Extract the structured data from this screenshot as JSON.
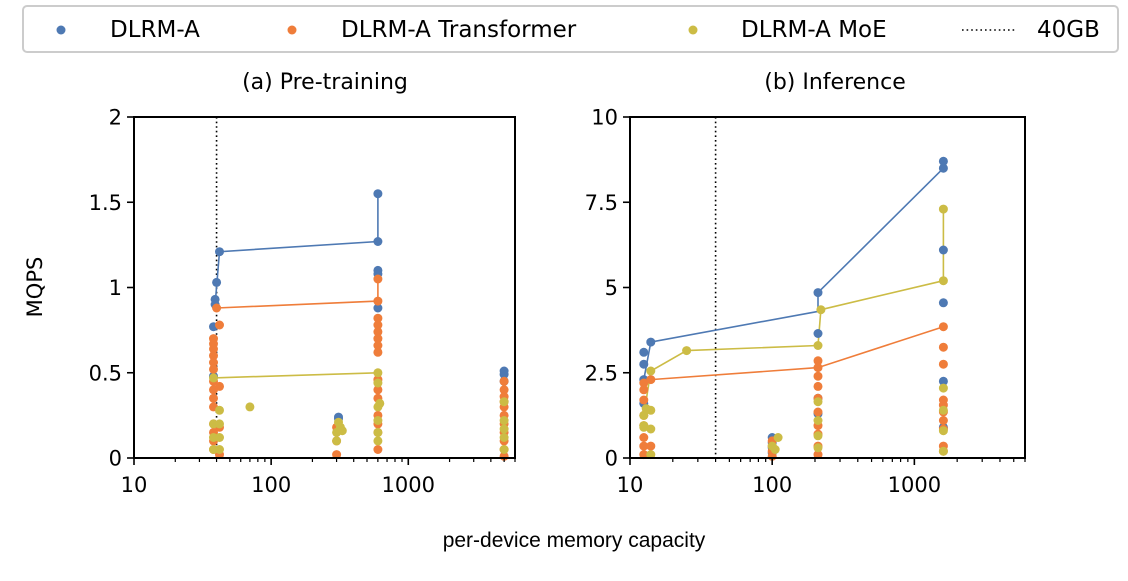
{
  "chart_data": {
    "type": "scatter",
    "xlabel": "per-device memory capacity",
    "legend": {
      "position": "top",
      "entries": [
        {
          "label": "DLRM-A",
          "color": "#4e79b3",
          "kind": "dot"
        },
        {
          "label": "DLRM-A Transformer",
          "color": "#ef7d3a",
          "kind": "dot"
        },
        {
          "label": "DLRM-A MoE",
          "color": "#ccbc45",
          "kind": "dot"
        },
        {
          "label": "40GB",
          "color": "#000000",
          "kind": "dotted-line"
        }
      ]
    },
    "panels": [
      {
        "title": "(a) Pre-training",
        "ylabel": "MQPS",
        "xscale": "log",
        "xlim": [
          10,
          6000
        ],
        "ylim": [
          0,
          2
        ],
        "xticks": [
          10,
          100,
          1000
        ],
        "xtick_labels": [
          "10",
          "100",
          "1000"
        ],
        "yticks": [
          0,
          0.5,
          1,
          1.5,
          2
        ],
        "ytick_labels": [
          "0",
          "0.5",
          "1",
          "1.5",
          "2"
        ],
        "vline": 40,
        "series": [
          {
            "name": "DLRM-A",
            "color": "#4e79b3",
            "points": [
              [
                40,
                1.03
              ],
              [
                39,
                0.93
              ],
              [
                39,
                0.9
              ],
              [
                38,
                0.77
              ],
              [
                38,
                0.48
              ],
              [
                42,
                1.21
              ],
              [
                600,
                1.55
              ],
              [
                600,
                1.27
              ],
              [
                600,
                1.1
              ],
              [
                600,
                1.08
              ],
              [
                600,
                0.88
              ],
              [
                310,
                0.24
              ],
              [
                310,
                0.23
              ],
              [
                5000,
                0.51
              ],
              [
                5000,
                0.49
              ],
              [
                5000,
                0.45
              ]
            ],
            "line": [
              [
                39,
                0.9
              ],
              [
                42,
                1.21
              ],
              [
                600,
                1.27
              ],
              [
                600,
                1.55
              ]
            ]
          },
          {
            "name": "DLRM-A Transformer",
            "color": "#ef7d3a",
            "points": [
              [
                38,
                0.7
              ],
              [
                38,
                0.67
              ],
              [
                38,
                0.64
              ],
              [
                38,
                0.6
              ],
              [
                38,
                0.56
              ],
              [
                38,
                0.52
              ],
              [
                38,
                0.45
              ],
              [
                38,
                0.4
              ],
              [
                38,
                0.35
              ],
              [
                38,
                0.3
              ],
              [
                38,
                0.2
              ],
              [
                38,
                0.15
              ],
              [
                38,
                0.1
              ],
              [
                38,
                0.05
              ],
              [
                40,
                0.88
              ],
              [
                42,
                0.78
              ],
              [
                42,
                0.42
              ],
              [
                42,
                0.18
              ],
              [
                42,
                0.02
              ],
              [
                600,
                1.05
              ],
              [
                600,
                0.92
              ],
              [
                600,
                0.82
              ],
              [
                600,
                0.78
              ],
              [
                600,
                0.74
              ],
              [
                600,
                0.7
              ],
              [
                600,
                0.66
              ],
              [
                600,
                0.62
              ],
              [
                600,
                0.46
              ],
              [
                600,
                0.4
              ],
              [
                600,
                0.35
              ],
              [
                600,
                0.25
              ],
              [
                600,
                0.2
              ],
              [
                600,
                0.15
              ],
              [
                600,
                0.05
              ],
              [
                300,
                0.18
              ],
              [
                300,
                0.1
              ],
              [
                300,
                0.02
              ],
              [
                5000,
                0.45
              ],
              [
                5000,
                0.4
              ],
              [
                5000,
                0.36
              ],
              [
                5000,
                0.33
              ],
              [
                5000,
                0.3
              ],
              [
                5000,
                0.25
              ],
              [
                5000,
                0.2
              ],
              [
                5000,
                0.15
              ],
              [
                5000,
                0.1
              ],
              [
                5000,
                0.05
              ],
              [
                5000,
                0.01
              ]
            ],
            "line": [
              [
                40,
                0.88
              ],
              [
                600,
                0.92
              ],
              [
                600,
                1.05
              ]
            ]
          },
          {
            "name": "DLRM-A MoE",
            "color": "#ccbc45",
            "points": [
              [
                38,
                0.47
              ],
              [
                38,
                0.2
              ],
              [
                38,
                0.12
              ],
              [
                38,
                0.05
              ],
              [
                42,
                0.28
              ],
              [
                42,
                0.2
              ],
              [
                42,
                0.12
              ],
              [
                42,
                0.05
              ],
              [
                70,
                0.3
              ],
              [
                600,
                0.5
              ],
              [
                600,
                0.44
              ],
              [
                620,
                0.32
              ],
              [
                600,
                0.3
              ],
              [
                600,
                0.22
              ],
              [
                600,
                0.15
              ],
              [
                600,
                0.1
              ],
              [
                310,
                0.21
              ],
              [
                320,
                0.18
              ],
              [
                300,
                0.15
              ],
              [
                330,
                0.16
              ],
              [
                300,
                0.1
              ],
              [
                5000,
                0.33
              ],
              [
                5000,
                0.22
              ],
              [
                5000,
                0.17
              ],
              [
                5000,
                0.12
              ],
              [
                5000,
                0.05
              ]
            ],
            "line": [
              [
                38,
                0.47
              ],
              [
                600,
                0.5
              ]
            ]
          }
        ]
      },
      {
        "title": "(b) Inference",
        "ylabel": "",
        "xscale": "log",
        "xlim": [
          10,
          6000
        ],
        "ylim": [
          0,
          10
        ],
        "xticks": [
          10,
          100,
          1000
        ],
        "xtick_labels": [
          "10",
          "100",
          "1000"
        ],
        "yticks": [
          0,
          2.5,
          5,
          7.5,
          10
        ],
        "ytick_labels": [
          "0",
          "2.5",
          "5",
          "7.5",
          "10"
        ],
        "vline": 40,
        "series": [
          {
            "name": "DLRM-A",
            "color": "#4e79b3",
            "points": [
              [
                12.5,
                3.1
              ],
              [
                12.5,
                2.75
              ],
              [
                12.5,
                2.3
              ],
              [
                12.5,
                1.6
              ],
              [
                14,
                3.4
              ],
              [
                100,
                0.6
              ],
              [
                100,
                0.45
              ],
              [
                100,
                0.3
              ],
              [
                100,
                0.15
              ],
              [
                210,
                4.85
              ],
              [
                210,
                3.65
              ],
              [
                210,
                1.75
              ],
              [
                210,
                1.3
              ],
              [
                1600,
                8.7
              ],
              [
                1600,
                8.5
              ],
              [
                1600,
                6.1
              ],
              [
                1600,
                4.55
              ],
              [
                1600,
                2.25
              ],
              [
                1600,
                0.9
              ]
            ],
            "line": [
              [
                12.5,
                2.3
              ],
              [
                14,
                3.4
              ],
              [
                210,
                4.3
              ],
              [
                210,
                4.85
              ],
              [
                1600,
                8.5
              ],
              [
                1600,
                8.7
              ]
            ]
          },
          {
            "name": "DLRM-A Transformer",
            "color": "#ef7d3a",
            "points": [
              [
                12.5,
                2.2
              ],
              [
                12.5,
                2.0
              ],
              [
                12.5,
                1.7
              ],
              [
                12.5,
                1.25
              ],
              [
                12.5,
                0.95
              ],
              [
                12.5,
                0.6
              ],
              [
                12.5,
                0.35
              ],
              [
                12.5,
                0.1
              ],
              [
                14,
                2.3
              ],
              [
                14,
                0.35
              ],
              [
                100,
                0.5
              ],
              [
                100,
                0.35
              ],
              [
                100,
                0.2
              ],
              [
                100,
                0.05
              ],
              [
                210,
                2.85
              ],
              [
                210,
                2.65
              ],
              [
                210,
                2.4
              ],
              [
                210,
                2.1
              ],
              [
                210,
                1.75
              ],
              [
                210,
                1.35
              ],
              [
                210,
                0.95
              ],
              [
                210,
                0.7
              ],
              [
                210,
                0.35
              ],
              [
                210,
                0.1
              ],
              [
                1600,
                3.85
              ],
              [
                1600,
                3.25
              ],
              [
                1600,
                2.75
              ],
              [
                1600,
                1.7
              ],
              [
                1600,
                1.55
              ],
              [
                1600,
                1.35
              ],
              [
                1600,
                1.1
              ],
              [
                1600,
                0.85
              ],
              [
                1600,
                0.35
              ],
              [
                1600,
                0.2
              ]
            ],
            "line": [
              [
                12.5,
                2.2
              ],
              [
                14,
                2.3
              ],
              [
                210,
                2.65
              ],
              [
                1600,
                3.85
              ]
            ]
          },
          {
            "name": "DLRM-A MoE",
            "color": "#ccbc45",
            "points": [
              [
                12.5,
                1.25
              ],
              [
                12.5,
                0.95
              ],
              [
                12.5,
                0.9
              ],
              [
                13,
                1.45
              ],
              [
                14,
                1.4
              ],
              [
                14,
                0.85
              ],
              [
                14,
                0.1
              ],
              [
                14,
                2.55
              ],
              [
                25,
                3.15
              ],
              [
                110,
                0.6
              ],
              [
                100,
                0.35
              ],
              [
                105,
                0.25
              ],
              [
                210,
                3.3
              ],
              [
                220,
                4.35
              ],
              [
                210,
                1.65
              ],
              [
                210,
                1.1
              ],
              [
                210,
                0.65
              ],
              [
                210,
                0.3
              ],
              [
                1600,
                7.3
              ],
              [
                1600,
                5.2
              ],
              [
                1600,
                2.05
              ],
              [
                1600,
                1.4
              ],
              [
                1600,
                0.8
              ],
              [
                1600,
                0.2
              ]
            ],
            "line": [
              [
                12.5,
                1.25
              ],
              [
                14,
                2.55
              ],
              [
                25,
                3.15
              ],
              [
                210,
                3.3
              ],
              [
                220,
                4.35
              ],
              [
                1600,
                5.2
              ],
              [
                1600,
                7.3
              ]
            ]
          }
        ]
      }
    ]
  }
}
